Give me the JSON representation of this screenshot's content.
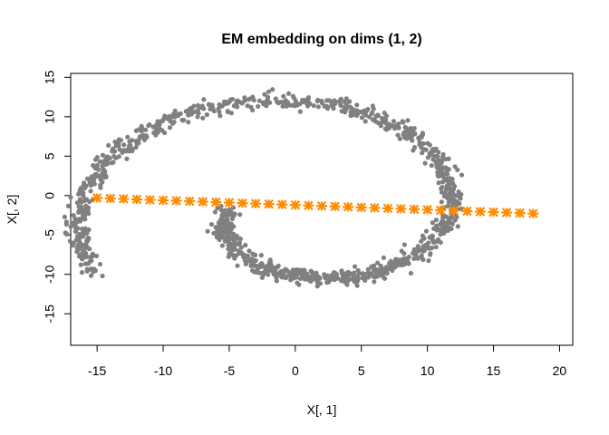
{
  "chart_data": {
    "type": "scatter",
    "title": "EM embedding on dims (1, 2)",
    "xlabel": "X[, 1]",
    "ylabel": "X[, 2]",
    "xlim": [
      -17,
      21
    ],
    "ylim": [
      -19,
      15.5
    ],
    "xticks": [
      -15,
      -10,
      -5,
      0,
      5,
      10,
      15,
      20
    ],
    "yticks": [
      -15,
      -10,
      -5,
      0,
      5,
      10,
      15
    ],
    "grid": false,
    "legend": "none",
    "series": [
      {
        "marker": "filled-circle",
        "color": "#808080",
        "pattern": "swiss roll spiral",
        "spiral_center": [
          0.5,
          -2.0
        ],
        "spiral_parametrization": "r = 5.6 * theta / pi, theta from pi to 3.15*pi",
        "n_points": 1200,
        "noise": 0.45
      },
      {
        "marker": "asterisk",
        "color": "#FF8C00",
        "x": [
          -15,
          -14,
          -13,
          -12,
          -11,
          -10,
          -9,
          -8,
          -7,
          -6,
          -5,
          -4,
          -3,
          -2,
          -1,
          0,
          1,
          2,
          3,
          4,
          5,
          6,
          7,
          8,
          9,
          10,
          11,
          12,
          13,
          14,
          15,
          16,
          17,
          18
        ],
        "y": [
          -0.3,
          -0.36,
          -0.42,
          -0.48,
          -0.54,
          -0.6,
          -0.66,
          -0.72,
          -0.78,
          -0.84,
          -0.9,
          -0.96,
          -1.02,
          -1.08,
          -1.14,
          -1.2,
          -1.26,
          -1.32,
          -1.38,
          -1.44,
          -1.5,
          -1.56,
          -1.62,
          -1.68,
          -1.74,
          -1.8,
          -1.86,
          -1.92,
          -1.98,
          -2.04,
          -2.1,
          -2.16,
          -2.22,
          -2.28
        ]
      }
    ]
  }
}
